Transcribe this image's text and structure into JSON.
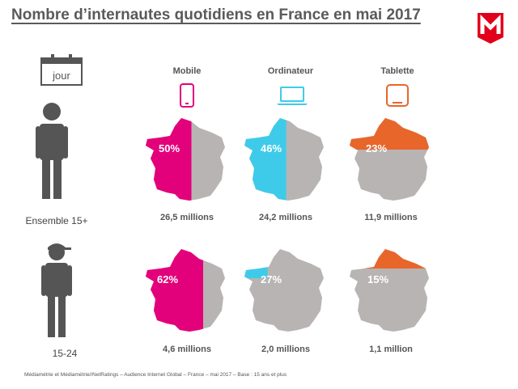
{
  "title": "Nombre d’internautes quotidiens en France en mai 2017",
  "calendar_label": "jour",
  "groups": [
    {
      "label": "Ensemble 15+"
    },
    {
      "label": "15-24"
    }
  ],
  "devices": [
    {
      "label": "Mobile",
      "icon": "smartphone-icon",
      "color": "#e3007b"
    },
    {
      "label": "Ordinateur",
      "icon": "laptop-icon",
      "color": "#3ecbea"
    },
    {
      "label": "Tablette",
      "icon": "tablet-icon",
      "color": "#e8662a"
    }
  ],
  "rows": [
    {
      "cells": [
        {
          "percent": "50%",
          "share": 0.5,
          "value": "26,5 millions"
        },
        {
          "percent": "46%",
          "share": 0.46,
          "value": "24,2 millions"
        },
        {
          "percent": "23%",
          "share": 0.23,
          "value": "11,9 millions"
        }
      ]
    },
    {
      "cells": [
        {
          "percent": "62%",
          "share": 0.62,
          "value": "4,6 millions"
        },
        {
          "percent": "27%",
          "share": 0.27,
          "value": "2,0 millions"
        },
        {
          "percent": "15%",
          "share": 0.15,
          "value": "1,1 million"
        }
      ]
    }
  ],
  "footer": "Médiamétrie et Médiamétrie//NetRatings – Audience Internet Global – France – mai 2017 – Base : 15 ans et plus",
  "colors": {
    "map_grey": "#b9b4b4",
    "text": "#4a4a4a",
    "logo_red": "#e2001a"
  }
}
